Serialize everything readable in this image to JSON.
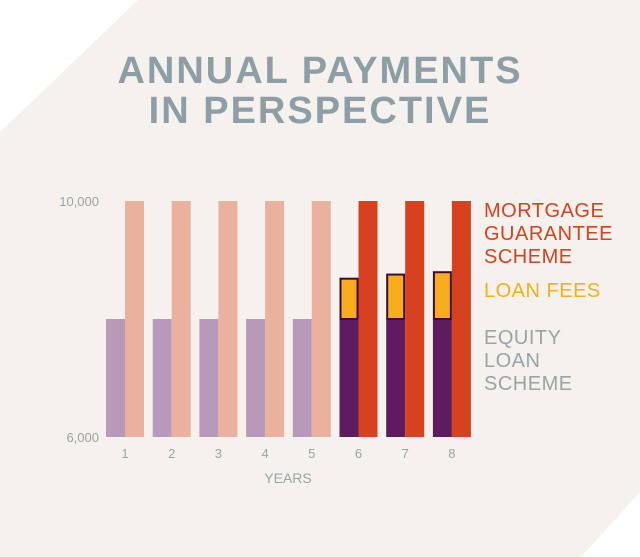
{
  "title": [
    "ANNUAL PAYMENTS",
    "IN PERSPECTIVE"
  ],
  "colors": {
    "background": "#f5f2ed",
    "title": "#8e9ea6",
    "axis_text": "#9aa3a8",
    "mortgage_guarantee_light": "#e9b19e",
    "mortgage_guarantee": "#d6411f",
    "loan_fees": "#f8ae1c",
    "equity_loan_light": "#b79ab9",
    "equity_loan": "#5e1b5e",
    "outline": "#3b0c3b"
  },
  "chart_data": {
    "type": "bar",
    "title": "ANNUAL PAYMENTS IN PERSPECTIVE",
    "xlabel": "YEARS",
    "ylabel": "",
    "categories": [
      "1",
      "2",
      "3",
      "4",
      "5",
      "6",
      "7",
      "8"
    ],
    "ylim": [
      6000,
      10000
    ],
    "ytick_labels": [
      "6,000",
      "10,000"
    ],
    "grid": false,
    "legend_position": "right",
    "series": [
      {
        "name": "EQUITY LOAN SCHEME",
        "stack": "equity",
        "values": [
          8000,
          8000,
          8000,
          8000,
          8000,
          8000,
          8000,
          8000
        ]
      },
      {
        "name": "LOAN FEES",
        "stack": "equity",
        "values": [
          0,
          0,
          0,
          0,
          0,
          700,
          770,
          810
        ]
      },
      {
        "name": "MORTGAGE GUARANTEE SCHEME",
        "stack": "mortgage",
        "values": [
          10000,
          10000,
          10000,
          10000,
          10000,
          10000,
          10000,
          10000
        ]
      }
    ]
  },
  "legend": [
    {
      "label": "MORTGAGE\nGUARANTEE\nSCHEME",
      "color": "#d6411f"
    },
    {
      "label": "LOAN FEES",
      "color": "#f8ae1c"
    },
    {
      "label": "EQUITY\nLOAN\nSCHEME",
      "color": "#9aa3a8"
    }
  ]
}
